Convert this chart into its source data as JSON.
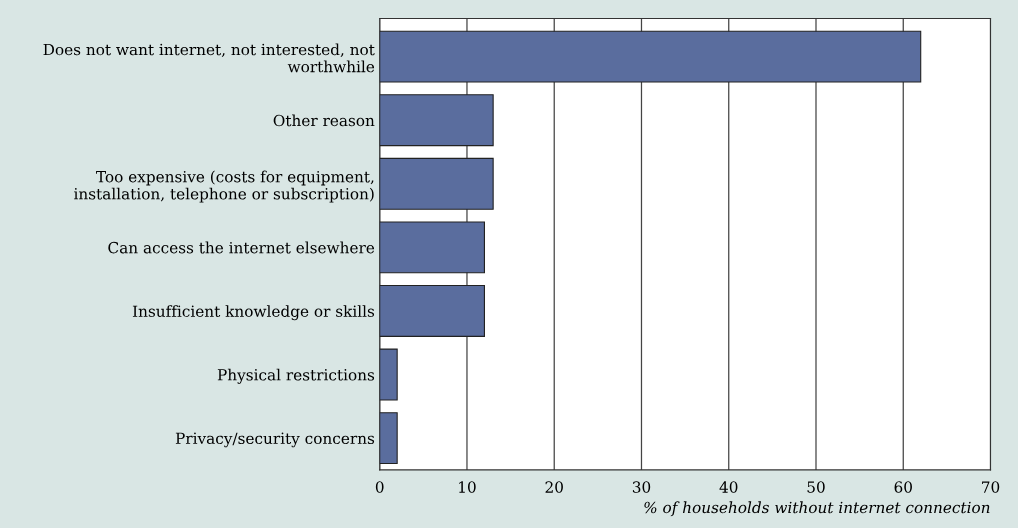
{
  "chart_data": {
    "type": "bar",
    "orientation": "horizontal",
    "categories": [
      "Does not want internet, not interested, not worthwhile",
      "Other reason",
      "Too expensive (costs for equipment, installation, telephone or subscription)",
      "Can access the internet elsewhere",
      "Insufficient knowledge or skills",
      "Physical restrictions",
      "Privacy/security concerns"
    ],
    "values": [
      62,
      13,
      13,
      12,
      12,
      2,
      2
    ],
    "color": "#5a6d9e",
    "xlabel": "% of households without internet connection",
    "xlim": [
      0,
      70
    ],
    "xticks": [
      0,
      10,
      20,
      30,
      40,
      50,
      60,
      70
    ],
    "grid": "x",
    "legend": false
  }
}
